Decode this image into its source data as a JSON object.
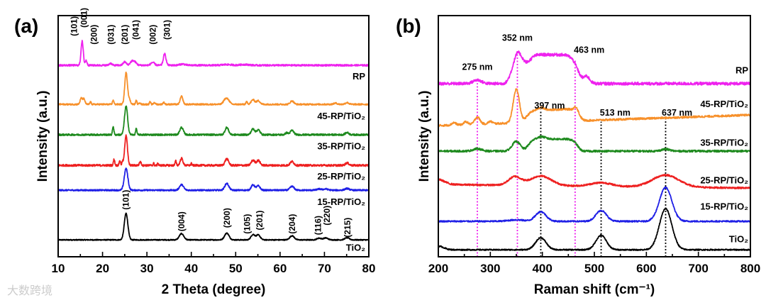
{
  "watermark": "大数跨境",
  "chart_data": [
    {
      "panel": "(a)",
      "type": "line",
      "title": "",
      "xlabel": "2 Theta (degree)",
      "ylabel": "Intensity (a.u.)",
      "xlim": [
        10,
        80
      ],
      "ylim": [
        0,
        100
      ],
      "xticks": [
        10,
        20,
        30,
        40,
        50,
        60,
        70,
        80
      ],
      "grid": false,
      "series": [
        {
          "name": "TiO₂",
          "color": "#000000",
          "baseline": 7,
          "slope": 0,
          "noise": 0.2,
          "label_y": 2.5,
          "peaks": [
            [
              25.3,
              11,
              0.4
            ],
            [
              37.8,
              2.6,
              0.5
            ],
            [
              48,
              2.8,
              0.5
            ],
            [
              53.9,
              2.2,
              0.45
            ],
            [
              55.1,
              2,
              0.45
            ],
            [
              62.7,
              1.7,
              0.5
            ],
            [
              68.8,
              0.7,
              0.5
            ],
            [
              70.3,
              0.8,
              0.5
            ],
            [
              75.1,
              0.9,
              0.5
            ]
          ]
        },
        {
          "name": "15-RP/TiO₂",
          "color": "#1f1fe6",
          "baseline": 27.6,
          "slope": 0,
          "noise": 0.3,
          "label_y": 21.5,
          "peaks": [
            [
              25.3,
              9,
              0.4
            ],
            [
              37.8,
              2.3,
              0.45
            ],
            [
              48,
              2.8,
              0.45
            ],
            [
              53.9,
              2.2,
              0.4
            ],
            [
              55.1,
              1.8,
              0.4
            ],
            [
              62.7,
              1.6,
              0.45
            ],
            [
              68.8,
              0.5,
              0.5
            ],
            [
              70.3,
              0.5,
              0.5
            ],
            [
              75.1,
              0.7,
              0.5
            ]
          ]
        },
        {
          "name": "25-RP/TiO₂",
          "color": "#ee2020",
          "baseline": 37.9,
          "slope": 0,
          "noise": 0.4,
          "label_y": 32,
          "peaks": [
            [
              25.3,
              12.6,
              0.3
            ],
            [
              22.6,
              2.5,
              0.15
            ],
            [
              23.9,
              2,
              0.15
            ],
            [
              24.5,
              1.5,
              0.15
            ],
            [
              28.5,
              1.5,
              0.2
            ],
            [
              31.5,
              1,
              0.1
            ],
            [
              32.5,
              1,
              0.1
            ],
            [
              36.5,
              1.8,
              0.15
            ],
            [
              37.8,
              2.9,
              0.3
            ],
            [
              40,
              1,
              0.1
            ],
            [
              48,
              2.7,
              0.4
            ],
            [
              53.9,
              2.1,
              0.4
            ],
            [
              55.1,
              2,
              0.4
            ],
            [
              62.7,
              1.6,
              0.4
            ],
            [
              75.1,
              1,
              0.4
            ]
          ]
        },
        {
          "name": "35-RP/TiO₂",
          "color": "#1e8a1e",
          "baseline": 50.6,
          "slope": 0,
          "noise": 0.35,
          "label_y": 44.5,
          "peaks": [
            [
              25.3,
              11.8,
              0.35
            ],
            [
              22.4,
              3.5,
              0.15
            ],
            [
              27.6,
              2.5,
              0.15
            ],
            [
              37.8,
              3,
              0.4
            ],
            [
              48,
              3,
              0.4
            ],
            [
              53.9,
              2.4,
              0.4
            ],
            [
              55.1,
              2,
              0.4
            ],
            [
              61.5,
              0.8,
              0.3
            ],
            [
              62.7,
              1.8,
              0.4
            ],
            [
              75.1,
              0.9,
              0.4
            ]
          ]
        },
        {
          "name": "45-RP/TiO₂",
          "color": "#f7902a",
          "baseline": 63.2,
          "slope": 0,
          "noise": 0.3,
          "label_y": 57,
          "peaks": [
            [
              25.3,
              13,
              0.3
            ],
            [
              15.2,
              2.5,
              0.25
            ],
            [
              15.8,
              2.2,
              0.25
            ],
            [
              17.3,
              1,
              0.15
            ],
            [
              22.4,
              1.8,
              0.15
            ],
            [
              26,
              2,
              0.3
            ],
            [
              27.6,
              1.6,
              0.15
            ],
            [
              28.4,
              0.8,
              0.15
            ],
            [
              30.7,
              1,
              0.15
            ],
            [
              31.7,
              0.7,
              0.2
            ],
            [
              33.8,
              0.8,
              0.2
            ],
            [
              37.8,
              3.3,
              0.3
            ],
            [
              47.6,
              1.9,
              0.4
            ],
            [
              48.3,
              1.7,
              0.4
            ],
            [
              52.5,
              1,
              0.2
            ],
            [
              53.9,
              1.9,
              0.4
            ],
            [
              55.1,
              1.5,
              0.4
            ],
            [
              62.7,
              1.4,
              0.4
            ],
            [
              72.5,
              0.5,
              0.4
            ],
            [
              75.1,
              0.7,
              0.4
            ]
          ]
        },
        {
          "name": "RP",
          "color": "#ee22ee",
          "baseline": 79.4,
          "slope": 0,
          "noise": 0.35,
          "label_y": 73.5,
          "peaks": [
            [
              15.4,
              10,
              0.25
            ],
            [
              16.3,
              2,
              0.2
            ],
            [
              21.8,
              0.8,
              0.3
            ],
            [
              25,
              1.4,
              0.35
            ],
            [
              26.6,
              1.5,
              0.4
            ],
            [
              27.3,
              1.2,
              0.4
            ],
            [
              31.3,
              1.2,
              0.4
            ],
            [
              34,
              4.7,
              0.3
            ],
            [
              38,
              0.5,
              0.6
            ],
            [
              48,
              0.3,
              1
            ],
            [
              52,
              0.3,
              1
            ]
          ]
        }
      ],
      "annotations": [
        {
          "text": "(101)",
          "x": 13.6,
          "y": 91.5
        },
        {
          "text": "(001)",
          "x": 15.8,
          "y": 95
        },
        {
          "text": "(200)",
          "x": 18.1,
          "y": 88
        },
        {
          "text": "(031)",
          "x": 21.9,
          "y": 88
        },
        {
          "text": "(201)",
          "x": 25.0,
          "y": 88
        },
        {
          "text": "(041)",
          "x": 27.5,
          "y": 90
        },
        {
          "text": "(002)",
          "x": 31.3,
          "y": 88
        },
        {
          "text": "(301)",
          "x": 34.5,
          "y": 90
        },
        {
          "text": "(101)",
          "x": 25.3,
          "y": 19.5
        },
        {
          "text": "(004)",
          "x": 37.8,
          "y": 10.5
        },
        {
          "text": "(200)",
          "x": 48.0,
          "y": 12
        },
        {
          "text": "(105)",
          "x": 52.6,
          "y": 9.5
        },
        {
          "text": "(201)",
          "x": 55.4,
          "y": 11
        },
        {
          "text": "(204)",
          "x": 62.7,
          "y": 9.5
        },
        {
          "text": "(116)",
          "x": 68.6,
          "y": 9
        },
        {
          "text": "(220)",
          "x": 70.6,
          "y": 13
        },
        {
          "text": "(215)",
          "x": 75.2,
          "y": 8
        }
      ]
    },
    {
      "panel": "(b)",
      "type": "line",
      "title": "",
      "xlabel": "Raman shift (cm⁻¹)",
      "ylabel": "Intensity (a.u.)",
      "xlim": [
        200,
        800
      ],
      "ylim": [
        0,
        100
      ],
      "xticks": [
        200,
        300,
        400,
        500,
        600,
        700,
        800
      ],
      "grid": false,
      "series": [
        {
          "name": "TiO₂",
          "color": "#000000",
          "baseline": 2.9,
          "slope": 0,
          "noise": 0.25,
          "label_y": 6,
          "peaks": [
            [
              200,
              1.5,
              10
            ],
            [
              397,
              5,
              10
            ],
            [
              513,
              6,
              10
            ],
            [
              637,
              17,
              12
            ]
          ]
        },
        {
          "name": "15-RP/TiO₂",
          "color": "#1f1fe6",
          "baseline": 14.7,
          "slope": 0,
          "noise": 0.3,
          "label_y": 19.5,
          "peaks": [
            [
              350,
              0.6,
              15
            ],
            [
              397,
              4,
              10
            ],
            [
              513,
              4.5,
              10
            ],
            [
              637,
              14,
              12
            ]
          ]
        },
        {
          "name": "25-RP/TiO₂",
          "color": "#ee2020",
          "baseline": 30,
          "slope": -1.5,
          "noise": 0.35,
          "label_y": 30.5,
          "peaks": [
            [
              200,
              2,
              12
            ],
            [
              347,
              3.5,
              12
            ],
            [
              397,
              4,
              20
            ],
            [
              513,
              1.5,
              20
            ],
            [
              637,
              5,
              25
            ]
          ]
        },
        {
          "name": "35-RP/TiO₂",
          "color": "#1e8a1e",
          "baseline": 43.8,
          "slope": 0,
          "noise": 0.4,
          "label_y": 46,
          "peaks": [
            [
              275,
              1,
              8
            ],
            [
              350,
              4,
              8
            ],
            [
              420,
              5,
              45,
              8
            ],
            [
              398,
              1,
              8
            ],
            [
              637,
              0.8,
              8
            ]
          ]
        },
        {
          "name": "45-RP/TiO₂",
          "color": "#f7902a",
          "baseline": 54.4,
          "slope": 4.4,
          "noise": 0.4,
          "label_y": 62,
          "peaks": [
            [
              230,
              1,
              4
            ],
            [
              253,
              1.2,
              4
            ],
            [
              275,
              3,
              5
            ],
            [
              300,
              1,
              4
            ],
            [
              350,
              14,
              6
            ],
            [
              420,
              5,
              48,
              8
            ],
            [
              397,
              1,
              6
            ],
            [
              465,
              2,
              4
            ]
          ]
        },
        {
          "name": "RP",
          "color": "#ee22ee",
          "baseline": 71.8,
          "slope": 0,
          "noise": 0.6,
          "label_y": 76,
          "peaks": [
            [
              275,
              1.5,
              8
            ],
            [
              352,
              3,
              6
            ],
            [
              405,
              12,
              60,
              8
            ],
            [
              370,
              -3,
              8
            ],
            [
              485,
              3,
              6
            ]
          ]
        }
      ],
      "reference_lines": [
        {
          "x": 275,
          "top": 72,
          "color": "#ee22ee"
        },
        {
          "x": 352,
          "top": 86,
          "color": "#ee22ee"
        },
        {
          "x": 463,
          "top": 82,
          "color": "#ee22ee"
        },
        {
          "x": 397,
          "top": 61,
          "color": "#000000"
        },
        {
          "x": 513,
          "top": 56,
          "color": "#000000"
        },
        {
          "x": 637,
          "top": 57,
          "color": "#000000"
        }
      ],
      "annotations": [
        {
          "text": "275 nm",
          "x": 275,
          "y": 77.5
        },
        {
          "text": "352 nm",
          "x": 352,
          "y": 89.5
        },
        {
          "text": "463 nm",
          "x": 490,
          "y": 84.5
        },
        {
          "text": "397 nm",
          "x": 414,
          "y": 61.5
        },
        {
          "text": "513 nm",
          "x": 540,
          "y": 58.5
        },
        {
          "text": "637 nm",
          "x": 659,
          "y": 58.5
        }
      ]
    }
  ]
}
